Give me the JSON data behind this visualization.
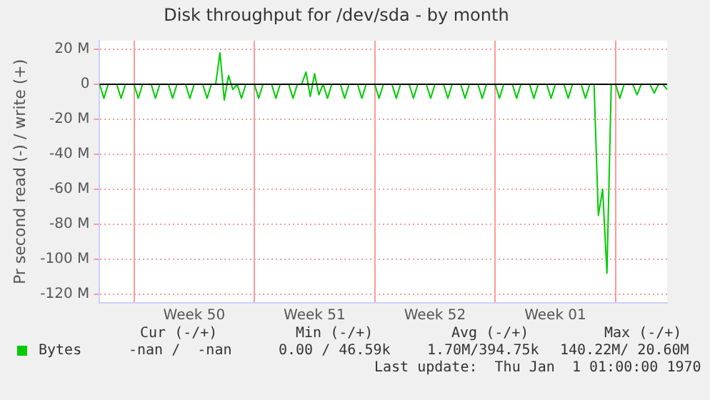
{
  "chart_data": {
    "type": "line",
    "title": "Disk throughput for /dev/sda - by month",
    "ylabel": "Pr second read (-) / write (+)",
    "categories": [
      null,
      null,
      null,
      null,
      null,
      null,
      null,
      null,
      null,
      null,
      null,
      null,
      null,
      null,
      null,
      null,
      null,
      null,
      null,
      null,
      null,
      null,
      "Week 50",
      null,
      null,
      null,
      null,
      null,
      null,
      null,
      null,
      null,
      null,
      null,
      null,
      null,
      null,
      null,
      null,
      null,
      null,
      null,
      null,
      null,
      null,
      null,
      null,
      null,
      null,
      null,
      "Week 51",
      null,
      null,
      null,
      null,
      null,
      null,
      null,
      null,
      null,
      null,
      null,
      null,
      null,
      null,
      null,
      null,
      null,
      null,
      null,
      null,
      null,
      null,
      null,
      null,
      null,
      null,
      null,
      "Week 52",
      null,
      null,
      null,
      null,
      null,
      null,
      null,
      null,
      null,
      null,
      null,
      null,
      null,
      null,
      null,
      null,
      null,
      null,
      null,
      null,
      null,
      null,
      null,
      null,
      null,
      null,
      null,
      "Week 01",
      null,
      null,
      null,
      null,
      null,
      null,
      null,
      null,
      null,
      null,
      null,
      null,
      null,
      null,
      null,
      null,
      null,
      null,
      null,
      null,
      null,
      null,
      null,
      null,
      null,
      null
    ],
    "series": [
      {
        "name": "Bytes",
        "color": "#00cc00",
        "values": [
          0,
          -8,
          0,
          0,
          0,
          -8,
          0,
          0,
          0,
          -8,
          0,
          0,
          0,
          -8,
          0,
          0,
          0,
          -8,
          0,
          0,
          0,
          -8,
          0,
          0,
          0,
          -8,
          0,
          0,
          18,
          -9,
          5,
          -3,
          0,
          -8,
          0,
          0,
          0,
          -8,
          0,
          0,
          0,
          -8,
          0,
          0,
          0,
          -8,
          0,
          0,
          7,
          -7,
          6,
          -6,
          0,
          -8,
          0,
          0,
          0,
          -8,
          0,
          0,
          0,
          -8,
          0,
          0,
          0,
          -8,
          0,
          0,
          0,
          -8,
          0,
          0,
          0,
          -8,
          0,
          0,
          0,
          -8,
          0,
          0,
          0,
          -8,
          0,
          0,
          0,
          -8,
          0,
          0,
          0,
          -8,
          0,
          0,
          0,
          -8,
          0,
          0,
          0,
          -8,
          0,
          0,
          0,
          -8,
          0,
          0,
          0,
          -8,
          0,
          0,
          0,
          -8,
          0,
          0,
          0,
          -8,
          0,
          0,
          -75,
          -60,
          -108,
          0,
          0,
          -8,
          0,
          0,
          0,
          -6,
          0,
          0,
          0,
          -5,
          0,
          0,
          -3
        ]
      }
    ],
    "ylim": [
      -125,
      25
    ],
    "yticks": [
      {
        "value": 20,
        "label": "20 M"
      },
      0,
      {
        "value": -20,
        "label": "-20 M"
      },
      {
        "value": -40,
        "label": "-40 M"
      },
      {
        "value": -60,
        "label": "-60 M"
      },
      {
        "value": -80,
        "label": "-80 M"
      },
      {
        "value": -100,
        "label": "-100 M"
      },
      {
        "value": -120,
        "label": "-120 M"
      }
    ],
    "ref_lines": [
      {
        "axis": "y",
        "value": 0,
        "color": "#000000"
      }
    ],
    "grid": true,
    "legend": "bottom",
    "marker": "none",
    "line_style": "solid",
    "annotations": [
      "Cur (-/+)",
      "Min (-/+)",
      "Avg (-/+)",
      "Max (-/+)",
      "-nan /  -nan",
      "0.00 / 46.59k",
      "1.70M/394.75k",
      "140.22M/ 20.60M",
      "Last update:  Thu Jan  1 01:00:00 1970"
    ]
  }
}
